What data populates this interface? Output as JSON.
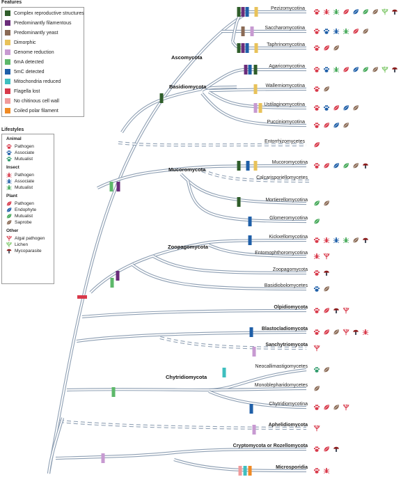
{
  "colors": {
    "branch": "#8e9fb3",
    "branch_fill": "#ffffff",
    "complex_reproductive": "#2f5d2a",
    "filamentous": "#6a2c7a",
    "yeast": "#8a6a55",
    "dimorphic": "#e8c25a",
    "genome_reduction": "#c79ad1",
    "m6a": "#5db86a",
    "m5c": "#1f5fa8",
    "mito_reduced": "#3fbfbf",
    "flagella_lost": "#d8394a",
    "no_chitin": "#f19a9a",
    "coiled_polar": "#f08a24",
    "animal_pathogen": "#d8394a",
    "animal_associate": "#1f5fa8",
    "animal_mutualist": "#2e9a6a",
    "plant_pathogen": "#d8394a",
    "plant_endophyte": "#1f5fa8",
    "plant_mutualist": "#43a857",
    "plant_saprobe": "#8a6a55",
    "algal": "#d8394a",
    "lichen": "#7fc86a",
    "myco": "#8b1a1a"
  },
  "features": {
    "title": "Features",
    "items": [
      {
        "label": "Complex reproductive structures",
        "color": "#2f5d2a"
      },
      {
        "label": "Predominantly filamentous",
        "color": "#6a2c7a"
      },
      {
        "label": "Predominantly yeast",
        "color": "#8a6a55"
      },
      {
        "label": "Dimorphic",
        "color": "#e8c25a"
      },
      {
        "label": "Genome reduction",
        "color": "#c79ad1"
      },
      {
        "label": "6mA detected",
        "color": "#5db86a"
      },
      {
        "label": "5mC detected",
        "color": "#1f5fa8"
      },
      {
        "label": "Mitochondria reduced",
        "color": "#3fbfbf"
      },
      {
        "label": "Flagella lost",
        "color": "#d8394a"
      },
      {
        "label": "No chitinous cell wall",
        "color": "#f19a9a"
      },
      {
        "label": "Coiled polar filament",
        "color": "#f08a24"
      }
    ]
  },
  "lifestyles": {
    "title": "Lifestyles",
    "groups": [
      {
        "name": "Animal",
        "items": [
          {
            "label": "Pathogen",
            "icon": "paw-icon",
            "color": "#d8394a"
          },
          {
            "label": "Associate",
            "icon": "paw-icon",
            "color": "#1f5fa8"
          },
          {
            "label": "Mutualist",
            "icon": "paw-icon",
            "color": "#2e9a6a"
          }
        ]
      },
      {
        "name": "Insect",
        "items": [
          {
            "label": "Pathogen",
            "icon": "insect-icon",
            "color": "#d8394a"
          },
          {
            "label": "Associate",
            "icon": "insect-icon",
            "color": "#1f5fa8"
          },
          {
            "label": "Mutualist",
            "icon": "insect-icon",
            "color": "#43a857"
          }
        ]
      },
      {
        "name": "Plant",
        "items": [
          {
            "label": "Pathogen",
            "icon": "leaf-icon",
            "color": "#d8394a"
          },
          {
            "label": "Endophyte",
            "icon": "leaf-icon",
            "color": "#1f5fa8"
          },
          {
            "label": "Mutualist",
            "icon": "leaf-icon",
            "color": "#43a857"
          },
          {
            "label": "Saprobe",
            "icon": "leaf-icon",
            "color": "#8a6a55"
          }
        ]
      },
      {
        "name": "Other",
        "items": [
          {
            "label": "Algal pathogen",
            "icon": "algae-icon",
            "color": "#d8394a"
          },
          {
            "label": "Lichen",
            "icon": "lichen-icon",
            "color": "#7fc86a"
          },
          {
            "label": "Mycoparasite",
            "icon": "mushroom-icon",
            "color": "#8b1a1a"
          }
        ]
      }
    ]
  },
  "phyla": [
    {
      "name": "Ascomycota",
      "bold": true
    },
    {
      "name": "Basidiomycota",
      "bold": true
    },
    {
      "name": "Mucoromycota",
      "bold": true
    },
    {
      "name": "Zoopagomycota",
      "bold": true
    },
    {
      "name": "Chytridiomycota",
      "bold": true
    }
  ],
  "tips": [
    {
      "name": "Pezizomycotina",
      "bold": false,
      "dashed": false,
      "icons": [
        [
          "paw-icon",
          "#d8394a"
        ],
        [
          "insect-icon",
          "#d8394a"
        ],
        [
          "insect-icon",
          "#43a857"
        ],
        [
          "leaf-icon",
          "#d8394a"
        ],
        [
          "leaf-icon",
          "#1f5fa8"
        ],
        [
          "leaf-icon",
          "#43a857"
        ],
        [
          "leaf-icon",
          "#8a6a55"
        ],
        [
          "lichen-icon",
          "#7fc86a"
        ],
        [
          "mushroom-icon",
          "#8b1a1a"
        ]
      ]
    },
    {
      "name": "Saccharomycotina",
      "bold": false,
      "dashed": false,
      "icons": [
        [
          "paw-icon",
          "#d8394a"
        ],
        [
          "paw-icon",
          "#1f5fa8"
        ],
        [
          "insect-icon",
          "#1f5fa8"
        ],
        [
          "insect-icon",
          "#43a857"
        ],
        [
          "leaf-icon",
          "#d8394a"
        ],
        [
          "leaf-icon",
          "#8a6a55"
        ]
      ]
    },
    {
      "name": "Taphrinomycotina",
      "bold": false,
      "dashed": false,
      "icons": [
        [
          "paw-icon",
          "#d8394a"
        ],
        [
          "leaf-icon",
          "#d8394a"
        ],
        [
          "leaf-icon",
          "#8a6a55"
        ]
      ]
    },
    {
      "name": "Agaricomycotina",
      "bold": false,
      "dashed": false,
      "icons": [
        [
          "paw-icon",
          "#d8394a"
        ],
        [
          "paw-icon",
          "#1f5fa8"
        ],
        [
          "insect-icon",
          "#43a857"
        ],
        [
          "leaf-icon",
          "#d8394a"
        ],
        [
          "leaf-icon",
          "#1f5fa8"
        ],
        [
          "leaf-icon",
          "#43a857"
        ],
        [
          "leaf-icon",
          "#8a6a55"
        ],
        [
          "lichen-icon",
          "#7fc86a"
        ],
        [
          "mushroom-icon",
          "#8b1a1a"
        ]
      ]
    },
    {
      "name": "Wallemiomycotina",
      "bold": false,
      "dashed": false,
      "icons": [
        [
          "paw-icon",
          "#d8394a"
        ],
        [
          "leaf-icon",
          "#8a6a55"
        ]
      ]
    },
    {
      "name": "Ustilaginomycotina",
      "bold": false,
      "dashed": false,
      "icons": [
        [
          "paw-icon",
          "#d8394a"
        ],
        [
          "paw-icon",
          "#1f5fa8"
        ],
        [
          "leaf-icon",
          "#d8394a"
        ],
        [
          "leaf-icon",
          "#1f5fa8"
        ],
        [
          "leaf-icon",
          "#8a6a55"
        ]
      ]
    },
    {
      "name": "Pucciniomycotina",
      "bold": false,
      "dashed": false,
      "icons": [
        [
          "paw-icon",
          "#d8394a"
        ],
        [
          "leaf-icon",
          "#d8394a"
        ],
        [
          "leaf-icon",
          "#1f5fa8"
        ],
        [
          "leaf-icon",
          "#8a6a55"
        ]
      ]
    },
    {
      "name": "Entorrhizomycetes",
      "bold": false,
      "dashed": true,
      "icons": [
        [
          "leaf-icon",
          "#d8394a"
        ]
      ]
    },
    {
      "name": "Mucoromycotina",
      "bold": false,
      "dashed": false,
      "icons": [
        [
          "paw-icon",
          "#d8394a"
        ],
        [
          "leaf-icon",
          "#d8394a"
        ],
        [
          "leaf-icon",
          "#1f5fa8"
        ],
        [
          "leaf-icon",
          "#43a857"
        ],
        [
          "leaf-icon",
          "#8a6a55"
        ],
        [
          "mushroom-icon",
          "#8b1a1a"
        ]
      ]
    },
    {
      "name": "Calcarisporiellomycetes",
      "bold": false,
      "dashed": true,
      "icons": []
    },
    {
      "name": "Mortierellomycotina",
      "bold": false,
      "dashed": false,
      "icons": [
        [
          "leaf-icon",
          "#43a857"
        ],
        [
          "leaf-icon",
          "#8a6a55"
        ]
      ]
    },
    {
      "name": "Glomeromycotina",
      "bold": false,
      "dashed": false,
      "icons": [
        [
          "leaf-icon",
          "#43a857"
        ]
      ]
    },
    {
      "name": "Kickxellomycotina",
      "bold": false,
      "dashed": false,
      "icons": [
        [
          "paw-icon",
          "#d8394a"
        ],
        [
          "insect-icon",
          "#d8394a"
        ],
        [
          "insect-icon",
          "#1f5fa8"
        ],
        [
          "insect-icon",
          "#43a857"
        ],
        [
          "leaf-icon",
          "#8a6a55"
        ],
        [
          "mushroom-icon",
          "#8b1a1a"
        ]
      ]
    },
    {
      "name": "Entomophthoromycotina",
      "bold": false,
      "dashed": false,
      "icons": [
        [
          "insect-icon",
          "#d8394a"
        ],
        [
          "algae-icon",
          "#d8394a"
        ]
      ]
    },
    {
      "name": "Zoopagomycota",
      "bold": false,
      "dashed": false,
      "icons": [
        [
          "paw-icon",
          "#d8394a"
        ],
        [
          "mushroom-icon",
          "#8b1a1a"
        ]
      ]
    },
    {
      "name": "Basidiobolomycetes",
      "bold": false,
      "dashed": false,
      "icons": [
        [
          "paw-icon",
          "#1f5fa8"
        ],
        [
          "leaf-icon",
          "#8a6a55"
        ]
      ]
    },
    {
      "name": "Olpidiomycota",
      "bold": true,
      "dashed": false,
      "icons": [
        [
          "paw-icon",
          "#d8394a"
        ],
        [
          "leaf-icon",
          "#d8394a"
        ],
        [
          "mushroom-icon",
          "#8b1a1a"
        ],
        [
          "algae-icon",
          "#d8394a"
        ]
      ]
    },
    {
      "name": "Blastocladiomycota",
      "bold": true,
      "dashed": false,
      "icons": [
        [
          "paw-icon",
          "#d8394a"
        ],
        [
          "leaf-icon",
          "#d8394a"
        ],
        [
          "leaf-icon",
          "#8a6a55"
        ],
        [
          "algae-icon",
          "#d8394a"
        ],
        [
          "mushroom-icon",
          "#8b1a1a"
        ],
        [
          "insect-icon",
          "#d8394a"
        ]
      ]
    },
    {
      "name": "Sanchytriomycota",
      "bold": true,
      "dashed": true,
      "icons": [
        [
          "algae-icon",
          "#d8394a"
        ]
      ]
    },
    {
      "name": "Neocallimastigomycetes",
      "bold": false,
      "dashed": false,
      "icons": [
        [
          "paw-icon",
          "#2e9a6a"
        ],
        [
          "leaf-icon",
          "#8a6a55"
        ]
      ]
    },
    {
      "name": "Monoblepharidomycetes",
      "bold": false,
      "dashed": false,
      "icons": [
        [
          "leaf-icon",
          "#8a6a55"
        ]
      ]
    },
    {
      "name": "Chytridiomycotina",
      "bold": false,
      "dashed": false,
      "icons": [
        [
          "paw-icon",
          "#d8394a"
        ],
        [
          "leaf-icon",
          "#d8394a"
        ],
        [
          "leaf-icon",
          "#8a6a55"
        ],
        [
          "algae-icon",
          "#d8394a"
        ]
      ]
    },
    {
      "name": "Aphelidiomycota",
      "bold": true,
      "dashed": true,
      "icons": [
        [
          "algae-icon",
          "#d8394a"
        ]
      ]
    },
    {
      "name": "Cryptomycota or Rozellomycota",
      "bold": true,
      "dashed": false,
      "icons": [
        [
          "paw-icon",
          "#d8394a"
        ],
        [
          "leaf-icon",
          "#d8394a"
        ],
        [
          "mushroom-icon",
          "#8b1a1a"
        ]
      ]
    },
    {
      "name": "Microsporidia",
      "bold": true,
      "dashed": false,
      "icons": [
        [
          "paw-icon",
          "#d8394a"
        ],
        [
          "insect-icon",
          "#d8394a"
        ]
      ]
    }
  ]
}
